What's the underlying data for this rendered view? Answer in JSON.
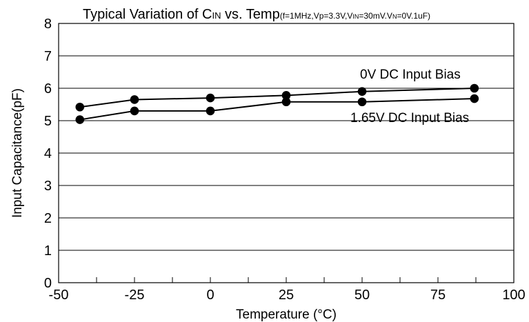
{
  "chart_data": {
    "type": "line",
    "title": "Typical Variation of C",
    "title_subscript": "IN",
    "title_rest": " vs. Temp",
    "title_conditions": "(f=1MHz,Vp=3.3V,V",
    "title_conditions_sub1": "IN",
    "title_conditions_mid": "=30mV.V",
    "title_conditions_sub2": "N",
    "title_conditions_end": "=0V.1uF)",
    "xlabel": "Temperature (°C)",
    "ylabel": "Input Capacitance(pF)",
    "xlim": [
      -50,
      100
    ],
    "ylim": [
      0,
      8
    ],
    "x_ticks": [
      -50,
      -25,
      0,
      25,
      50,
      75,
      100
    ],
    "y_ticks": [
      0,
      1,
      2,
      3,
      4,
      5,
      6,
      7,
      8
    ],
    "grid": "horizontal",
    "series": [
      {
        "name": "0V DC Input Bias",
        "x": [
          -43,
          -25,
          0,
          25,
          50,
          87
        ],
        "y": [
          5.42,
          5.65,
          5.7,
          5.78,
          5.9,
          6.0
        ]
      },
      {
        "name": "1.65V DC Input Bias",
        "x": [
          -43,
          -25,
          0,
          25,
          50,
          87
        ],
        "y": [
          5.03,
          5.3,
          5.3,
          5.58,
          5.58,
          5.68
        ]
      }
    ],
    "colors": {
      "line": "#000000",
      "grid": "#000000",
      "background": "#ffffff"
    }
  }
}
